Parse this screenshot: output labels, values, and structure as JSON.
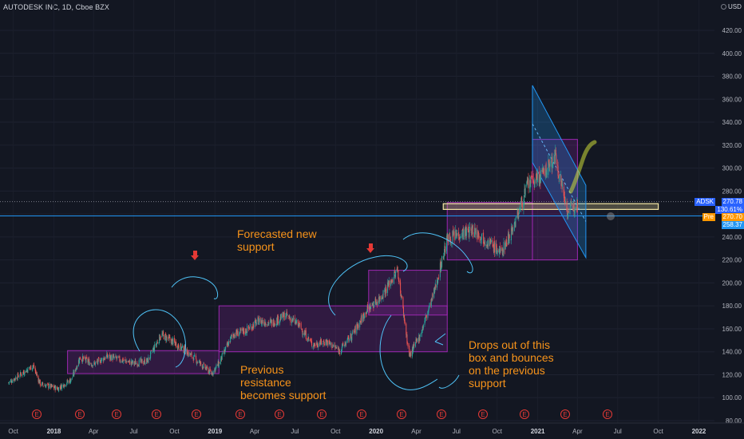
{
  "header": {
    "title": "AUTODESK INC, 1D, Cboe BZX",
    "currency": "USD"
  },
  "chart_data": {
    "type": "candlestick",
    "symbol": "ADSK",
    "y_axis_labels": [
      "80.00",
      "100.00",
      "120.00",
      "140.00",
      "160.00",
      "180.00",
      "200.00",
      "220.00",
      "240.00",
      "260.00",
      "280.00",
      "300.00",
      "320.00",
      "340.00",
      "360.00",
      "380.00",
      "400.00",
      "420.00"
    ],
    "x_axis_labels": [
      "Oct",
      "2018",
      "Apr",
      "Jul",
      "Oct",
      "2019",
      "Apr",
      "Jul",
      "Oct",
      "2020",
      "Apr",
      "Jul",
      "Oct",
      "2021",
      "Apr",
      "Jul",
      "Oct",
      "2022"
    ],
    "ylim": [
      78,
      440
    ],
    "price_path": [
      [
        "2017-09-20",
        113
      ],
      [
        "2017-10-20",
        121
      ],
      [
        "2017-11-15",
        128
      ],
      [
        "2017-12-01",
        112
      ],
      [
        "2018-01-10",
        108
      ],
      [
        "2018-02-10",
        116
      ],
      [
        "2018-03-01",
        135
      ],
      [
        "2018-04-01",
        129
      ],
      [
        "2018-05-01",
        136
      ],
      [
        "2018-06-01",
        133
      ],
      [
        "2018-07-01",
        130
      ],
      [
        "2018-08-01",
        132
      ],
      [
        "2018-09-01",
        155
      ],
      [
        "2018-10-01",
        148
      ],
      [
        "2018-11-01",
        139
      ],
      [
        "2018-12-01",
        129
      ],
      [
        "2018-12-24",
        121
      ],
      [
        "2019-01-10",
        130
      ],
      [
        "2019-02-10",
        155
      ],
      [
        "2019-03-10",
        158
      ],
      [
        "2019-04-10",
        167
      ],
      [
        "2019-05-10",
        165
      ],
      [
        "2019-06-10",
        172
      ],
      [
        "2019-07-10",
        163
      ],
      [
        "2019-08-10",
        146
      ],
      [
        "2019-09-10",
        149
      ],
      [
        "2019-10-10",
        141
      ],
      [
        "2019-11-10",
        156
      ],
      [
        "2019-12-10",
        176
      ],
      [
        "2020-01-10",
        187
      ],
      [
        "2020-02-19",
        211
      ],
      [
        "2020-03-16",
        136
      ],
      [
        "2020-04-10",
        155
      ],
      [
        "2020-05-10",
        190
      ],
      [
        "2020-06-10",
        238
      ],
      [
        "2020-07-10",
        243
      ],
      [
        "2020-08-10",
        246
      ],
      [
        "2020-09-10",
        236
      ],
      [
        "2020-10-10",
        226
      ],
      [
        "2020-11-10",
        252
      ],
      [
        "2020-12-10",
        286
      ],
      [
        "2021-01-10",
        293
      ],
      [
        "2021-02-10",
        310
      ],
      [
        "2021-03-10",
        262
      ],
      [
        "2021-04-01",
        270
      ]
    ],
    "horizontal_lines": [
      {
        "price": 270.78,
        "style": "dotted",
        "color": "#787b86"
      },
      {
        "price": 258.37,
        "style": "solid",
        "color": "#2196f3"
      }
    ],
    "boxes": [
      {
        "x0": "2018-02-01",
        "x1": "2019-01-10",
        "y0": 121,
        "y1": 141
      },
      {
        "x0": "2019-01-10",
        "x1": "2020-06-10",
        "y0": 140,
        "y1": 180
      },
      {
        "x0": "2019-12-15",
        "x1": "2020-06-10",
        "y0": 172,
        "y1": 211
      },
      {
        "x0": "2020-06-10",
        "x1": "2020-12-20",
        "y0": 220,
        "y1": 270
      },
      {
        "x0": "2020-12-20",
        "x1": "2021-04-01",
        "y0": 220,
        "y1": 325
      },
      {
        "x0": "2020-06-01",
        "x1": "2021-10-01",
        "y0": 264,
        "y1": 269,
        "color": "yellow"
      }
    ],
    "channel": {
      "x0": "2020-12-20",
      "x1": "2021-04-20",
      "top": [
        372,
        285
      ],
      "bottom": [
        305,
        222
      ]
    },
    "annotations": [
      {
        "text": "Forecasted new\nsupport",
        "x": "2019-01-20",
        "y": 240
      },
      {
        "text": "Previous\nresistance\nbecomes support",
        "x": "2019-01-25",
        "y": 128
      },
      {
        "text": "Drops out of this\nbox and bounces\non the previous\nsupport",
        "x": "2020-07-05",
        "y": 152
      }
    ],
    "earnings_markers_count": 15,
    "price_tags": [
      {
        "label": "ADSK",
        "value": "270.78",
        "extra": "130.61%",
        "color": "#2962ff"
      },
      {
        "label": "Pre",
        "value": "270.70",
        "color": "#ff9800"
      },
      {
        "value": "258.37",
        "color": "#2196f3"
      }
    ]
  },
  "earnings_label": "E"
}
